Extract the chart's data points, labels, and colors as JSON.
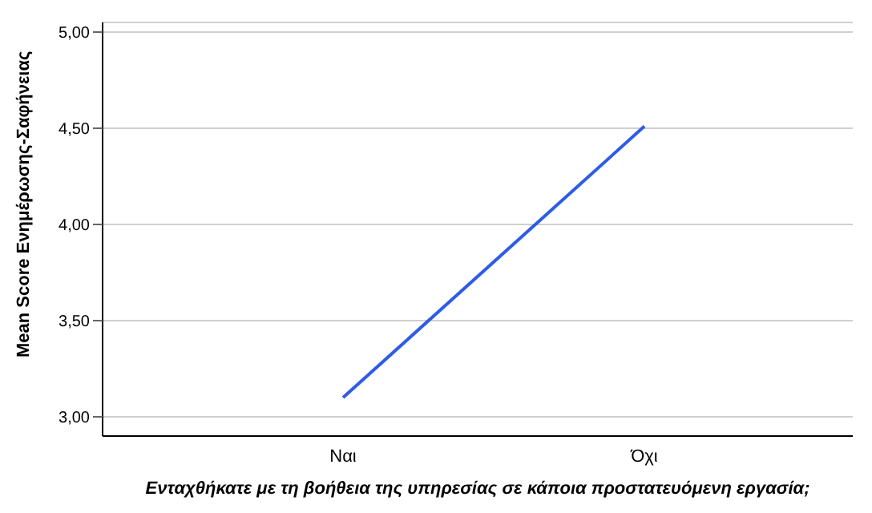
{
  "chart_data": {
    "type": "line",
    "xlabel": "Ενταχθήκατε με τη βοήθεια της υπηρεσίας σε κάποια προστατευόμενη εργασία;",
    "ylabel": "Mean Score Ενημέρωσης-Σαφήνειας",
    "categories": [
      "Ναι",
      "Όχι"
    ],
    "series": [
      {
        "color": "#2e5ce6",
        "values": [
          3.1,
          4.51
        ]
      }
    ],
    "ylim": [
      2.9,
      5.05
    ],
    "yticks": [
      {
        "value": 3,
        "label": "3,00"
      },
      {
        "value": 3.5,
        "label": "3,50"
      },
      {
        "value": 4,
        "label": "4,00"
      },
      {
        "value": 4.5,
        "label": "4,50"
      },
      {
        "value": 5,
        "label": "5,00"
      }
    ],
    "grid": "y",
    "legend": false,
    "marker": "none",
    "line_style": "solid"
  }
}
